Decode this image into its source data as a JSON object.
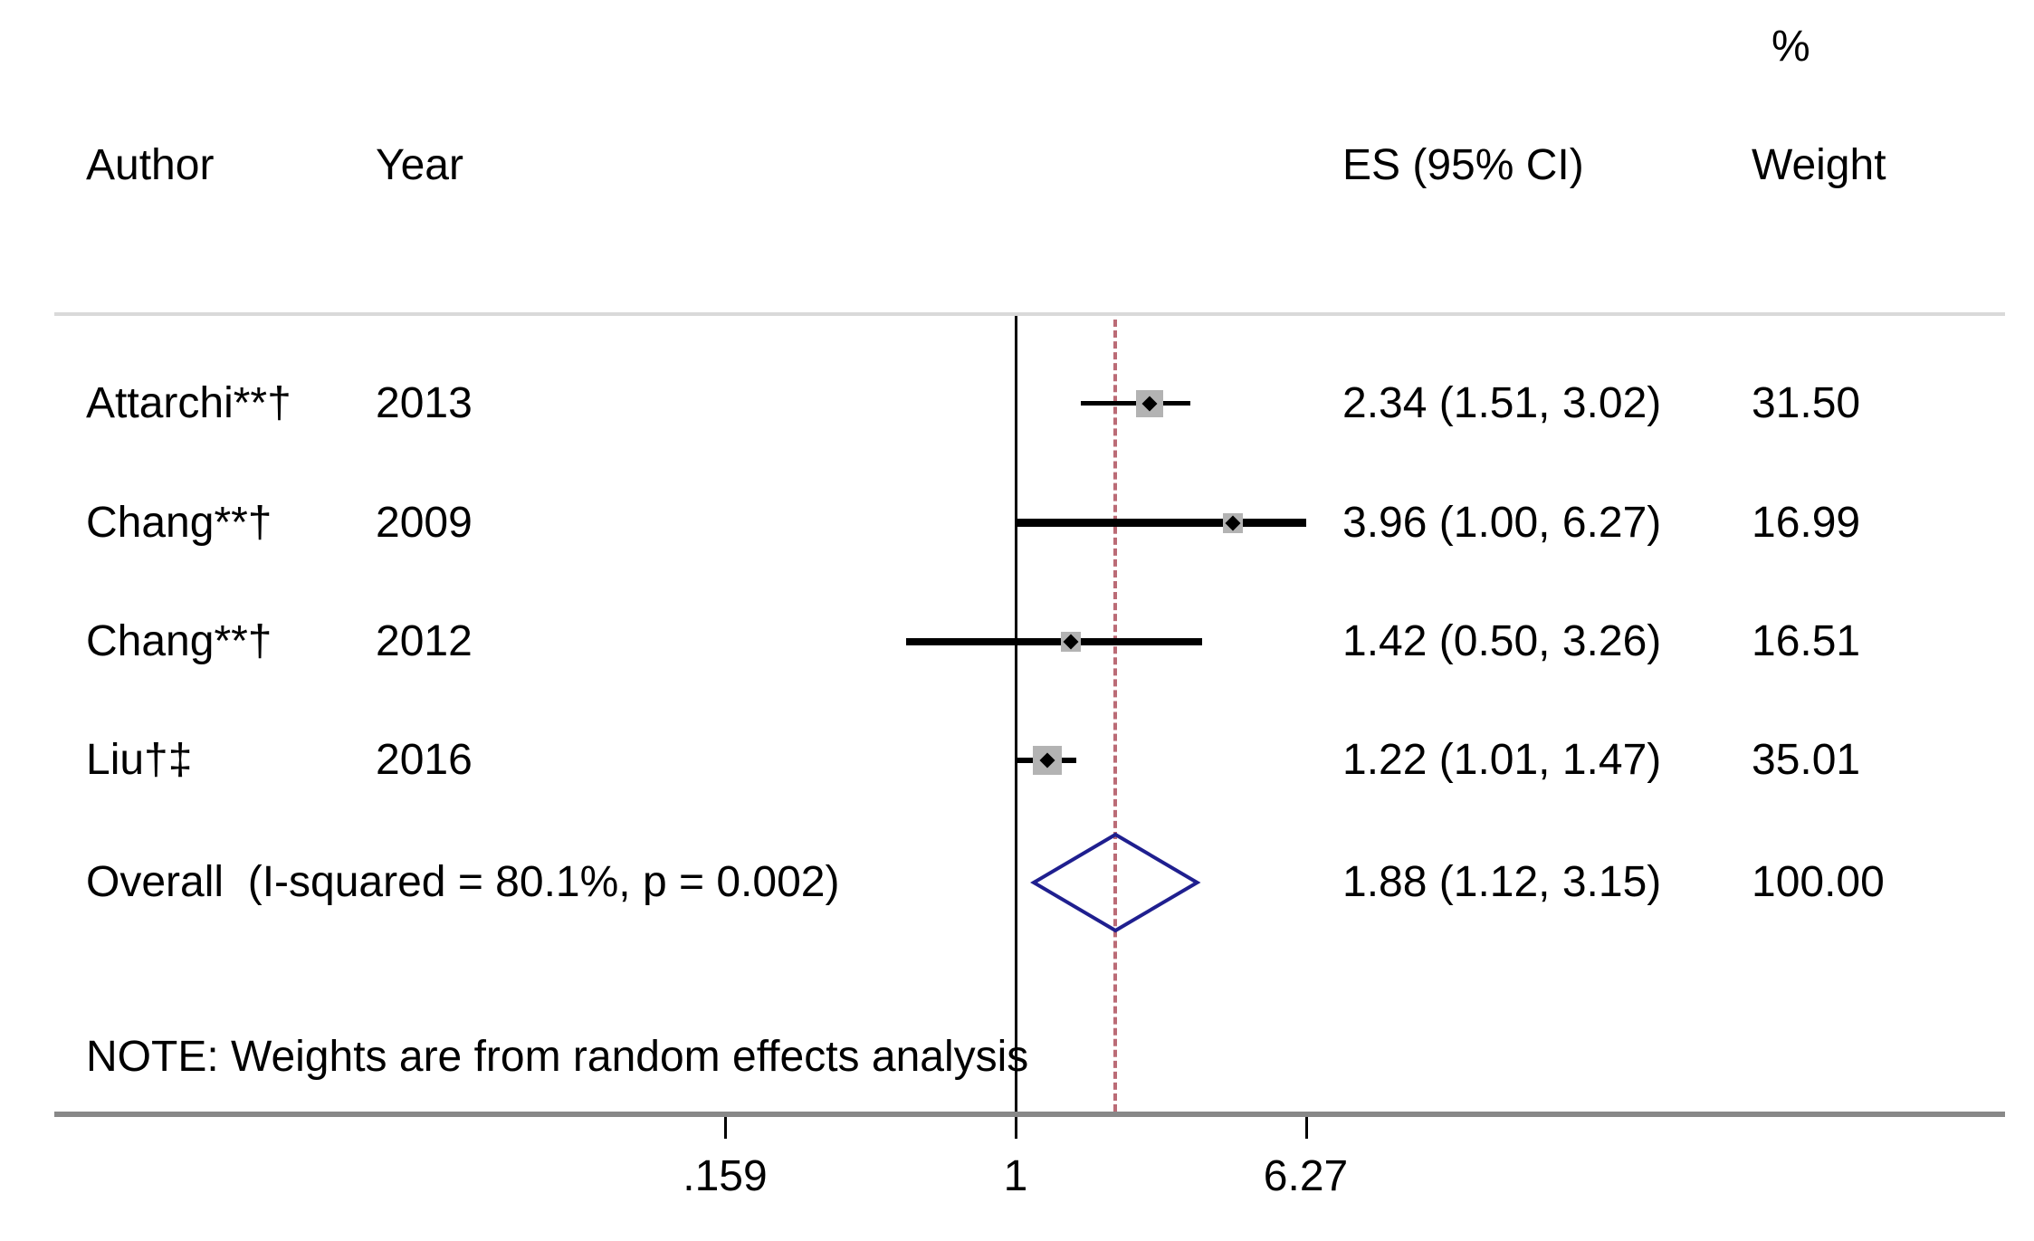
{
  "header": {
    "percent_label": "%",
    "author_label": "Author",
    "year_label": "Year",
    "es_label": "ES (95% CI)",
    "weight_label": "Weight"
  },
  "note": "NOTE: Weights are from random effects analysis",
  "colors": {
    "separator": "#d9d9d9",
    "axis": "#888888",
    "null_line": "#000000",
    "overall_dash": "#bb6b76",
    "weight_square": "#b3b3b3",
    "diamond": "#1f1f8f",
    "text": "#000000"
  },
  "chart_data": {
    "type": "forest",
    "x_scale": "log",
    "x_ticks": [
      {
        "label": ".159",
        "value": 0.159
      },
      {
        "label": "1",
        "value": 1
      },
      {
        "label": "6.27",
        "value": 6.27
      }
    ],
    "xlim": [
      0.159,
      6.27
    ],
    "null_line_value": 1,
    "overall_line_value": 1.88,
    "studies": [
      {
        "author": "Attarchi**†",
        "year": "2013",
        "es": 2.34,
        "ci_low": 1.51,
        "ci_high": 3.02,
        "es_text": "2.34 (1.51, 3.02)",
        "weight": 31.5,
        "weight_text": "31.50"
      },
      {
        "author": "Chang**†",
        "year": "2009",
        "es": 3.96,
        "ci_low": 1.0,
        "ci_high": 6.27,
        "es_text": "3.96 (1.00, 6.27)",
        "weight": 16.99,
        "weight_text": "16.99"
      },
      {
        "author": "Chang**†",
        "year": "2012",
        "es": 1.42,
        "ci_low": 0.5,
        "ci_high": 3.26,
        "es_text": "1.42 (0.50, 3.26)",
        "weight": 16.51,
        "weight_text": "16.51"
      },
      {
        "author": "Liu†‡",
        "year": "2016",
        "es": 1.22,
        "ci_low": 1.01,
        "ci_high": 1.47,
        "es_text": "1.22 (1.01, 1.47)",
        "weight": 35.01,
        "weight_text": "35.01"
      }
    ],
    "overall": {
      "label": "Overall  (I-squared = 80.1%, p = 0.002)",
      "es": 1.88,
      "ci_low": 1.12,
      "ci_high": 3.15,
      "es_text": "1.88 (1.12, 3.15)",
      "weight": 100.0,
      "weight_text": "100.00"
    }
  }
}
